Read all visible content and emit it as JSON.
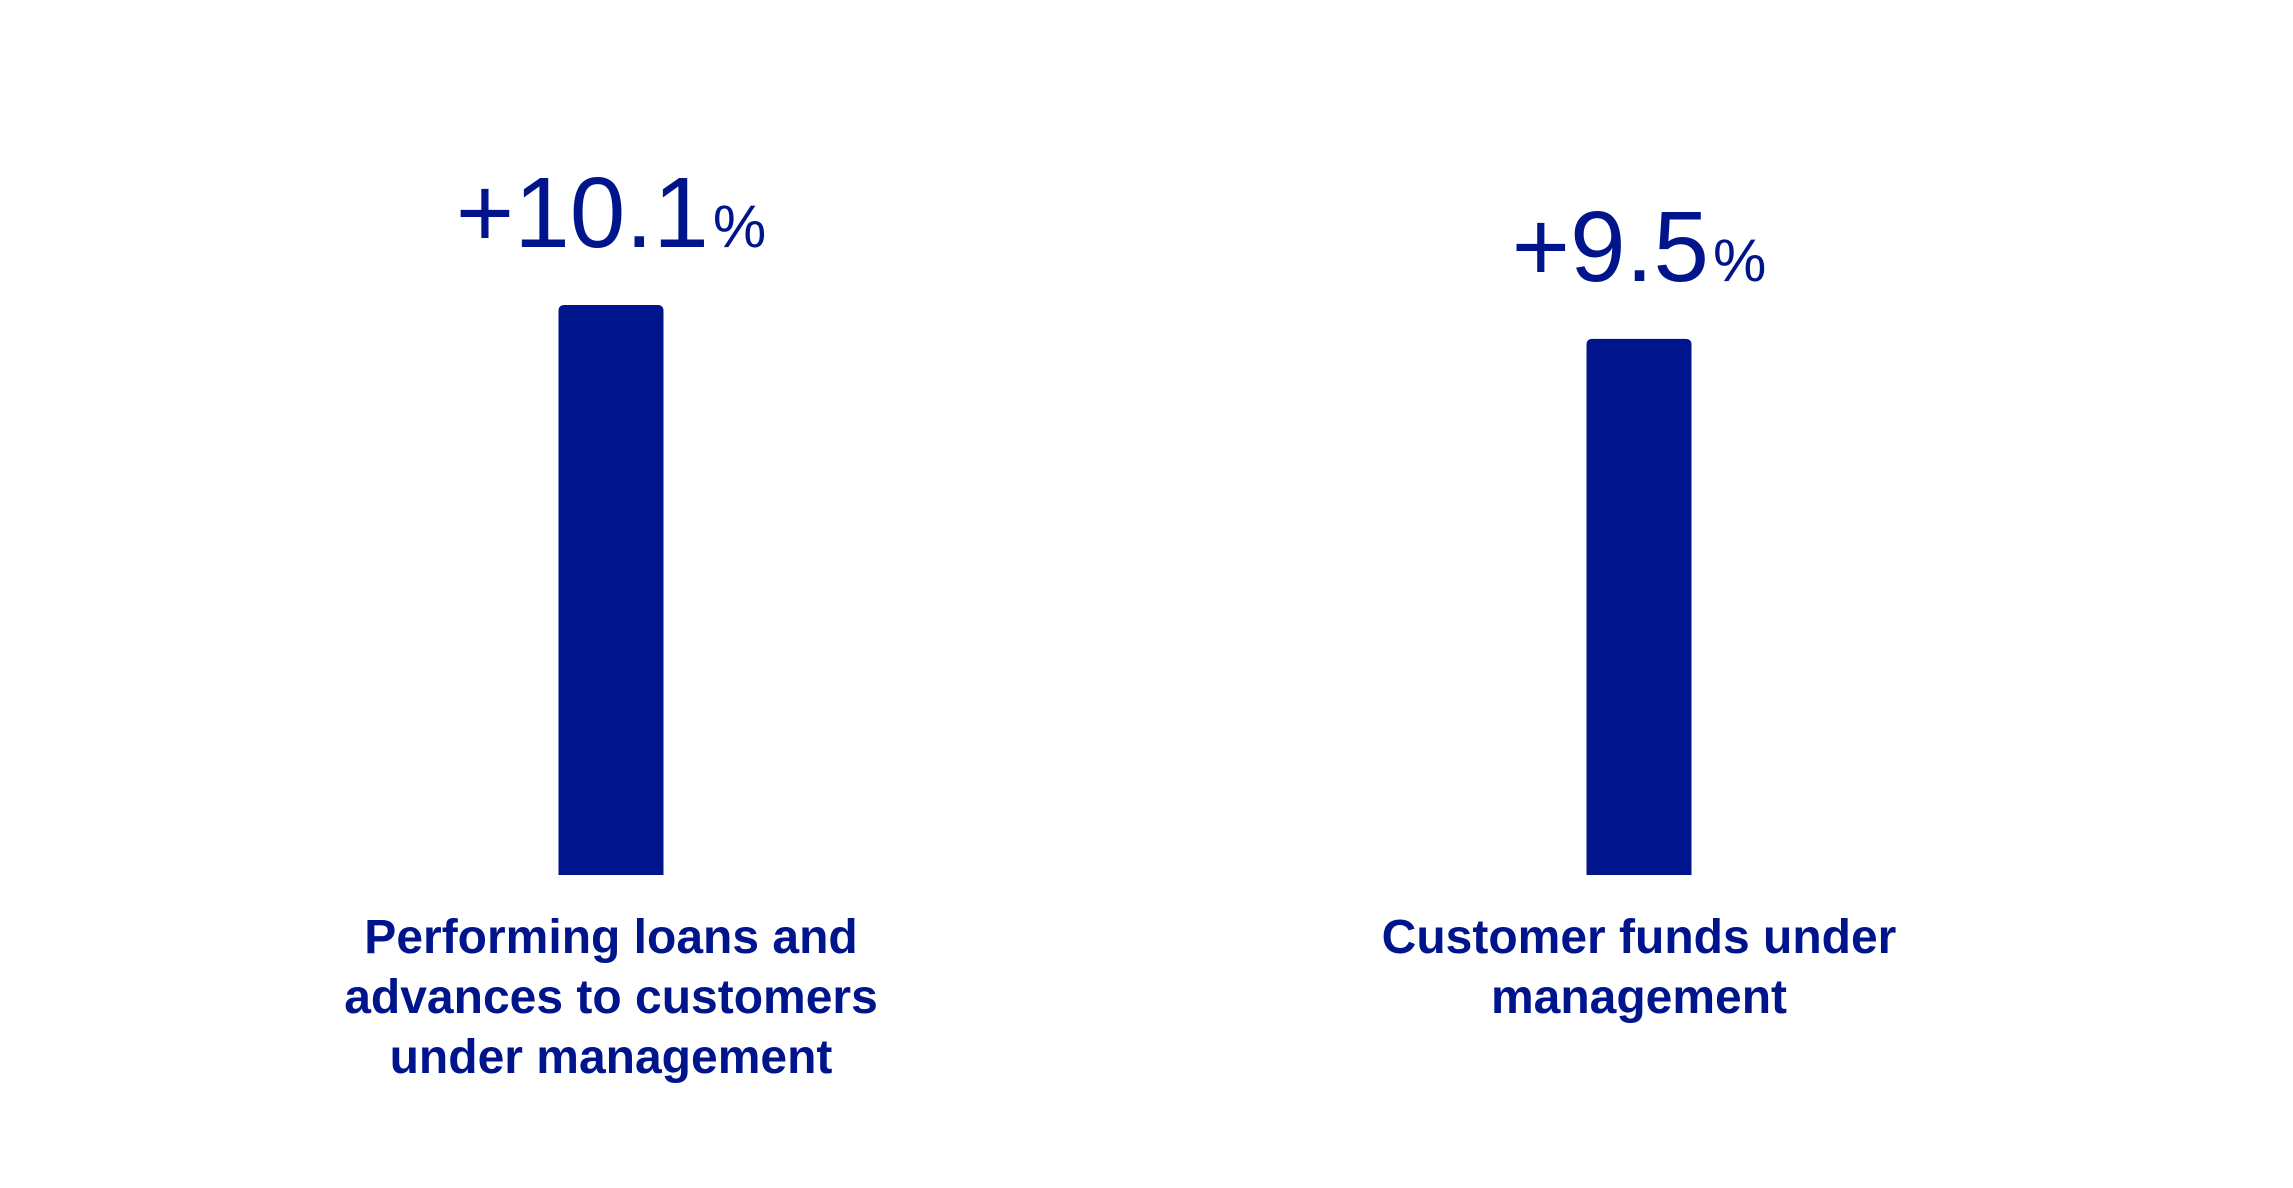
{
  "chart_data": {
    "type": "bar",
    "categories": [
      "Performing loans and advances to customers under management",
      "Customer funds under management"
    ],
    "category_lines": [
      [
        "Performing loans and",
        "advances to customers",
        "under management"
      ],
      [
        "Customer funds under",
        "management"
      ]
    ],
    "values": [
      10.1,
      9.5
    ],
    "value_labels": [
      "+10.1",
      "+9.5"
    ],
    "value_unit": "%",
    "ylim": [
      0,
      10.1
    ],
    "grid": false,
    "legend": "none",
    "bar_color": "#00148C",
    "text_color": "#00148C"
  }
}
